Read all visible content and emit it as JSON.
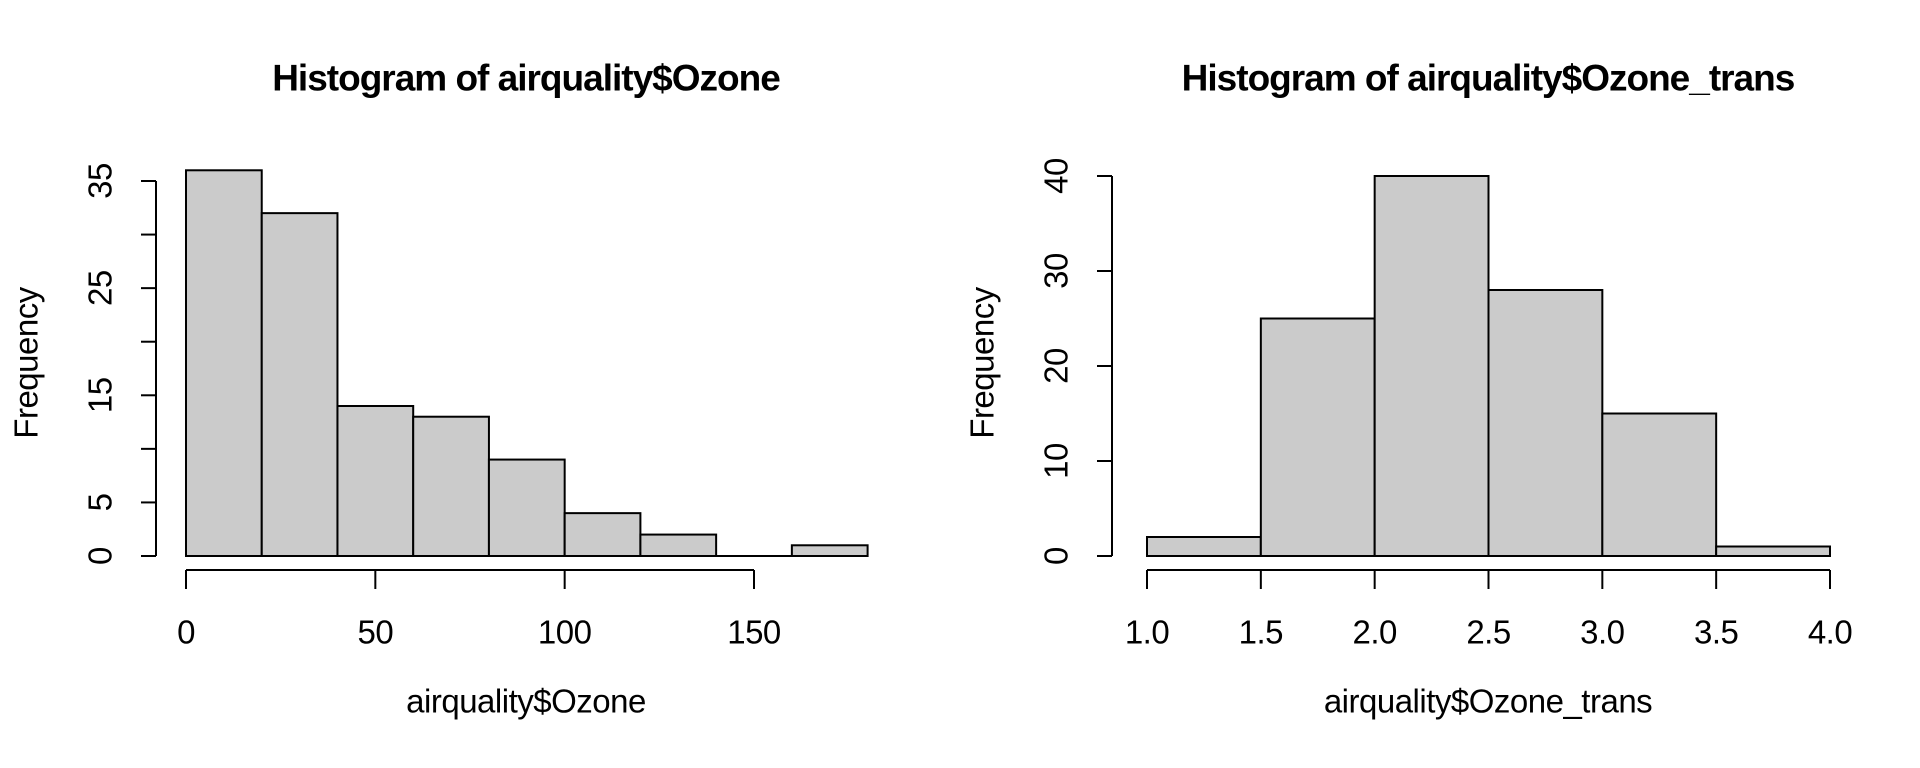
{
  "figure": {
    "background": "#ffffff",
    "bar_fill": "#cbcbcb",
    "stroke_color": "#000000"
  },
  "chart_data": [
    {
      "type": "bar",
      "subtype": "histogram",
      "title": "Histogram of airquality$Ozone",
      "xlabel": "airquality$Ozone",
      "ylabel": "Frequency",
      "breaks": [
        0,
        20,
        40,
        60,
        80,
        100,
        120,
        140,
        160,
        180
      ],
      "counts": [
        36,
        32,
        14,
        13,
        9,
        4,
        2,
        0,
        1
      ],
      "xlim": [
        0,
        180
      ],
      "ylim": [
        0,
        36
      ],
      "grid": false,
      "legend": null,
      "x_ticks": [
        {
          "v": 0,
          "label": "0"
        },
        {
          "v": 50,
          "label": "50"
        },
        {
          "v": 100,
          "label": "100"
        },
        {
          "v": 150,
          "label": "150"
        }
      ],
      "y_ticks": [
        {
          "v": 0,
          "label": "0"
        },
        {
          "v": 5,
          "label": "5"
        },
        {
          "v": 10,
          "label": ""
        },
        {
          "v": 15,
          "label": "15"
        },
        {
          "v": 20,
          "label": ""
        },
        {
          "v": 25,
          "label": "25"
        },
        {
          "v": 30,
          "label": ""
        },
        {
          "v": 35,
          "label": "35"
        }
      ]
    },
    {
      "type": "bar",
      "subtype": "histogram",
      "title": "Histogram of airquality$Ozone_trans",
      "xlabel": "airquality$Ozone_trans",
      "ylabel": "Frequency",
      "breaks": [
        1.0,
        1.5,
        2.0,
        2.5,
        3.0,
        3.5,
        4.0
      ],
      "counts": [
        2,
        25,
        40,
        28,
        15,
        1
      ],
      "xlim": [
        1.0,
        4.0
      ],
      "ylim": [
        0,
        40
      ],
      "grid": false,
      "legend": null,
      "x_ticks": [
        {
          "v": 1.0,
          "label": "1.0"
        },
        {
          "v": 1.5,
          "label": "1.5"
        },
        {
          "v": 2.0,
          "label": "2.0"
        },
        {
          "v": 2.5,
          "label": "2.5"
        },
        {
          "v": 3.0,
          "label": "3.0"
        },
        {
          "v": 3.5,
          "label": "3.5"
        },
        {
          "v": 4.0,
          "label": "4.0"
        }
      ],
      "y_ticks": [
        {
          "v": 0,
          "label": "0"
        },
        {
          "v": 10,
          "label": "10"
        },
        {
          "v": 20,
          "label": "20"
        },
        {
          "v": 30,
          "label": "30"
        },
        {
          "v": 40,
          "label": "40"
        }
      ]
    }
  ]
}
